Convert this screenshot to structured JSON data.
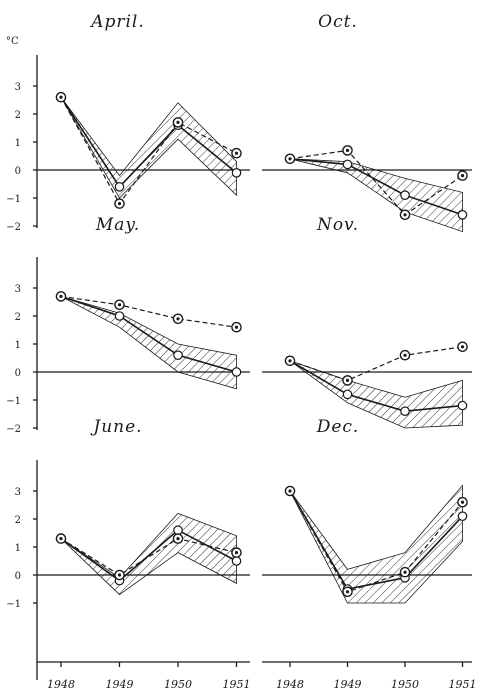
{
  "unit_label": "°C",
  "y_ticks": [
    3,
    2,
    1,
    0,
    -1,
    -2
  ],
  "x_years": [
    "1948",
    "1949",
    "1950",
    "1951"
  ],
  "chart_data": [
    {
      "type": "line",
      "title": "April.",
      "ylim": [
        -2,
        3.5
      ],
      "x": [
        "1948",
        "1949",
        "1950",
        "1951"
      ],
      "band": {
        "upper": [
          2.6,
          -0.2,
          2.4,
          0.3
        ],
        "lower": [
          2.6,
          -1.0,
          1.1,
          -0.9
        ]
      },
      "series": [
        {
          "style": "solid-open",
          "values": [
            2.6,
            -0.6,
            1.6,
            -0.1
          ]
        },
        {
          "style": "dashed-dot",
          "values": [
            2.6,
            -1.2,
            1.7,
            0.6
          ]
        }
      ]
    },
    {
      "type": "line",
      "title": "Oct.",
      "ylim": [
        -2,
        3.5
      ],
      "x": [
        "1948",
        "1949",
        "1950",
        "1951"
      ],
      "band": {
        "upper": [
          0.4,
          0.3,
          -0.3,
          -0.8
        ],
        "lower": [
          0.4,
          -0.1,
          -1.5,
          -2.2
        ]
      },
      "series": [
        {
          "style": "solid-open",
          "values": [
            0.4,
            0.2,
            -0.9,
            -1.6
          ]
        },
        {
          "style": "dashed-dot",
          "values": [
            0.4,
            0.7,
            -1.6,
            -0.2
          ]
        }
      ]
    },
    {
      "type": "line",
      "title": "May.",
      "ylim": [
        -2,
        3.5
      ],
      "x": [
        "1948",
        "1949",
        "1950",
        "1951"
      ],
      "band": {
        "upper": [
          2.7,
          2.1,
          1.0,
          0.6
        ],
        "lower": [
          2.7,
          1.6,
          0.0,
          -0.6
        ]
      },
      "series": [
        {
          "style": "solid-open",
          "values": [
            2.7,
            2.0,
            0.6,
            0.0
          ]
        },
        {
          "style": "dashed-dot",
          "values": [
            2.7,
            2.4,
            1.9,
            1.6
          ]
        }
      ]
    },
    {
      "type": "line",
      "title": "Nov.",
      "ylim": [
        -2,
        3.5
      ],
      "x": [
        "1948",
        "1949",
        "1950",
        "1951"
      ],
      "band": {
        "upper": [
          0.4,
          -0.3,
          -0.9,
          -0.3
        ],
        "lower": [
          0.4,
          -1.1,
          -2.0,
          -1.9
        ]
      },
      "series": [
        {
          "style": "solid-open",
          "values": [
            0.4,
            -0.8,
            -1.4,
            -1.2
          ]
        },
        {
          "style": "dashed-dot",
          "values": [
            0.4,
            -0.3,
            0.6,
            0.9
          ]
        }
      ]
    },
    {
      "type": "line",
      "title": "June.",
      "ylim": [
        -2,
        3.5
      ],
      "x": [
        "1948",
        "1949",
        "1950",
        "1951"
      ],
      "band": {
        "upper": [
          1.3,
          -0.1,
          2.2,
          1.4
        ],
        "lower": [
          1.3,
          -0.7,
          0.8,
          -0.3
        ]
      },
      "series": [
        {
          "style": "solid-open",
          "values": [
            1.3,
            -0.2,
            1.6,
            0.5
          ]
        },
        {
          "style": "dashed-dot",
          "values": [
            1.3,
            0.0,
            1.3,
            0.8
          ]
        }
      ]
    },
    {
      "type": "line",
      "title": "Dec.",
      "ylim": [
        -2,
        3.5
      ],
      "x": [
        "1948",
        "1949",
        "1950",
        "1951"
      ],
      "band": {
        "upper": [
          3.0,
          0.2,
          0.8,
          3.2
        ],
        "lower": [
          3.0,
          -1.0,
          -1.0,
          1.2
        ]
      },
      "series": [
        {
          "style": "solid-open",
          "values": [
            3.0,
            -0.5,
            -0.1,
            2.1
          ]
        },
        {
          "style": "dashed-dot",
          "values": [
            3.0,
            -0.6,
            0.1,
            2.6
          ]
        }
      ]
    }
  ]
}
